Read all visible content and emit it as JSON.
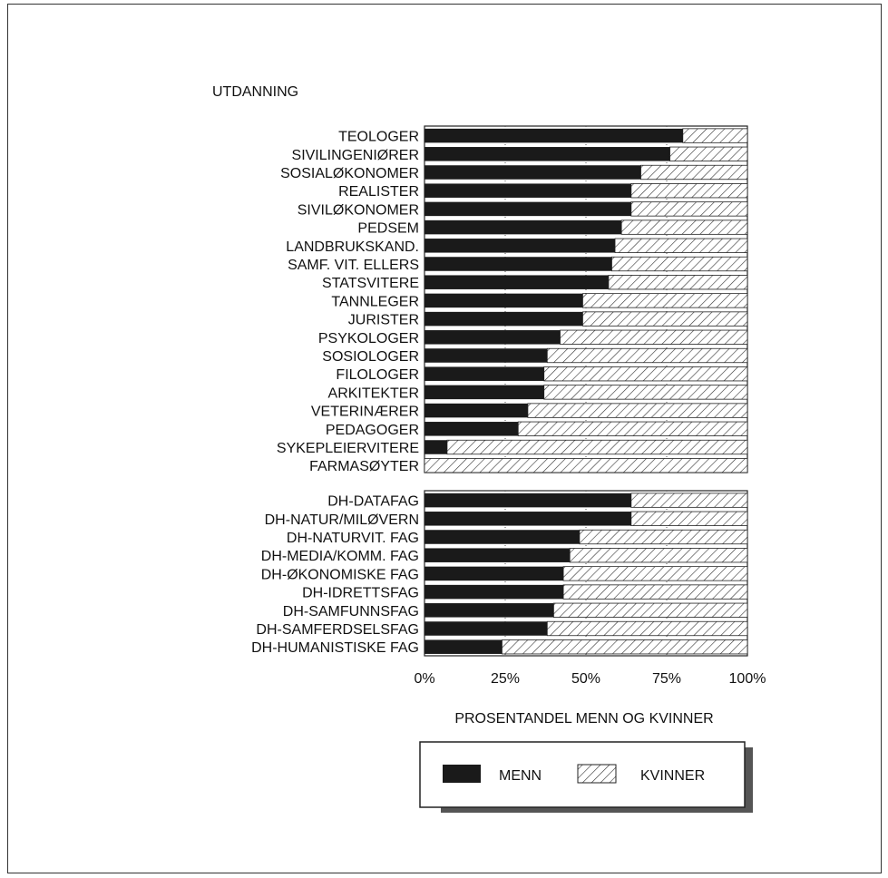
{
  "chart_data": {
    "type": "bar",
    "orientation": "horizontal",
    "stacked": true,
    "y_category_title": "UTDANNING",
    "xlabel": "PROSENTANDEL MENN OG KVINNER",
    "xlim": [
      0,
      100
    ],
    "x_ticks": [
      "0%",
      "25%",
      "50%",
      "75%",
      "100%"
    ],
    "gridlines": "vertical dotted",
    "legend_position": "bottom",
    "legend": {
      "menn": "MENN",
      "kvinner": "KVINNER"
    },
    "colors": {
      "menn": "#1a1a1a",
      "kvinner_hatch": "#333333",
      "background": "#ffffff"
    },
    "groups": [
      {
        "categories": [
          "TEOLOGER",
          "SIVILINGENIØRER",
          "SOSIALØKONOMER",
          "REALISTER",
          "SIVILØKONOMER",
          "PEDSEM",
          "LANDBRUKSKAND.",
          "SAMF. VIT. ELLERS",
          "STATSVITERE",
          "TANNLEGER",
          "JURISTER",
          "PSYKOLOGER",
          "SOSIOLOGER",
          "FILOLOGER",
          "ARKITEKTER",
          "VETERINÆRER",
          "PEDAGOGER",
          "SYKEPLEIERVITERE",
          "FARMASØYTER"
        ],
        "menn": [
          80,
          76,
          67,
          64,
          64,
          61,
          59,
          58,
          57,
          49,
          49,
          42,
          38,
          37,
          37,
          32,
          29,
          7,
          0
        ],
        "kvinner": [
          20,
          24,
          33,
          36,
          36,
          39,
          41,
          42,
          43,
          51,
          51,
          58,
          62,
          63,
          63,
          68,
          71,
          93,
          100
        ]
      },
      {
        "categories": [
          "DH-DATAFAG",
          "DH-NATUR/MILØVERN",
          "DH-NATURVIT. FAG",
          "DH-MEDIA/KOMM. FAG",
          "DH-ØKONOMISKE FAG",
          "DH-IDRETTSFAG",
          "DH-SAMFUNNSFAG",
          "DH-SAMFERDSELSFAG",
          "DH-HUMANISTISKE FAG"
        ],
        "menn": [
          64,
          64,
          48,
          45,
          43,
          43,
          40,
          38,
          24
        ],
        "kvinner": [
          36,
          36,
          52,
          55,
          57,
          57,
          60,
          62,
          76
        ]
      }
    ]
  }
}
